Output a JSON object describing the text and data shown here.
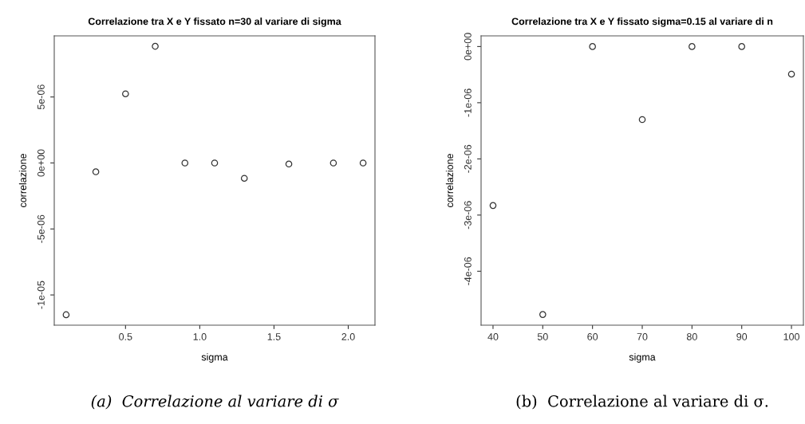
{
  "chart_data": [
    {
      "type": "scatter",
      "title": "Correlazione tra X e Y fissato n=30 al variare di sigma",
      "xlabel": "sigma",
      "ylabel": "correlazione",
      "marker": "circle",
      "grid": false,
      "color": "#333333",
      "x": [
        0.1,
        0.3,
        0.5,
        0.7,
        0.9,
        1.1,
        1.3,
        1.6,
        1.9,
        2.1
      ],
      "values": [
        -1.15e-05,
        -6.7e-07,
        5.24e-06,
        8.84e-06,
        0,
        0,
        -1.16e-06,
        -8e-08,
        0,
        0
      ],
      "xlim": [
        0.02,
        2.18
      ],
      "xticks": [
        {
          "value": 0.5,
          "label": "0.5"
        },
        {
          "value": 1.0,
          "label": "1.0"
        },
        {
          "value": 1.5,
          "label": "1.5"
        },
        {
          "value": 2.0,
          "label": "2.0"
        }
      ],
      "ylim": [
        -1.229e-05,
        9.63e-06
      ],
      "yticks": [
        {
          "value": -1e-05,
          "label": "-1e-05"
        },
        {
          "value": -5e-06,
          "label": "-5e-06"
        },
        {
          "value": 0,
          "label": "0e+00"
        },
        {
          "value": 5e-06,
          "label": "5e-06"
        }
      ],
      "annotations": [
        "(a)  Correlazione al variare di σ"
      ]
    },
    {
      "type": "scatter",
      "title": "Correlazione tra X e Y fissato sigma=0.15 al variare di n",
      "xlabel": "sigma",
      "ylabel": "correlazione",
      "marker": "circle",
      "grid": false,
      "color": "#333333",
      "x": [
        40,
        50,
        60,
        70,
        80,
        90,
        100
      ],
      "values": [
        -2.83e-06,
        -4.77e-06,
        0,
        -1.3e-06,
        0,
        0,
        -4.9e-07
      ],
      "xlim": [
        37.6,
        102.4
      ],
      "xticks": [
        40,
        50,
        60,
        70,
        80,
        90,
        100
      ],
      "ylim": [
        -4.96e-06,
        1.9e-07
      ],
      "yticks": [
        {
          "value": -4e-06,
          "label": "-4e-06"
        },
        {
          "value": -3e-06,
          "label": "-3e-06"
        },
        {
          "value": -2e-06,
          "label": "-2e-06"
        },
        {
          "value": -1e-06,
          "label": "-1e-06"
        },
        {
          "value": 0,
          "label": "0e+00"
        }
      ],
      "annotations": [
        "(b)  Correlazione al variare di σ."
      ]
    }
  ]
}
